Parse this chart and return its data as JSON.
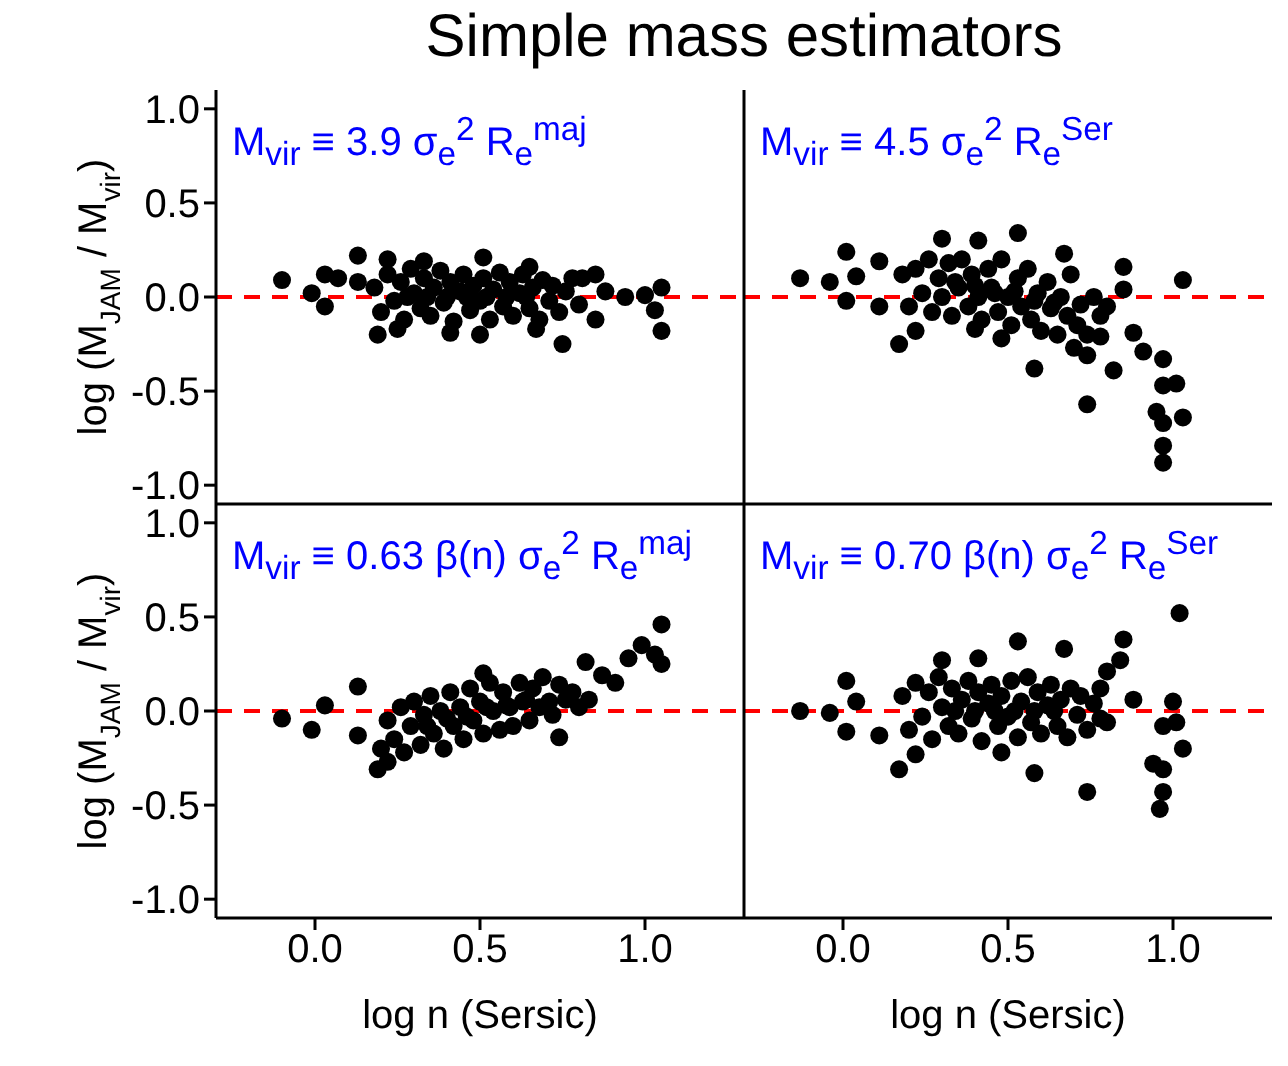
{
  "chart_data": [
    {
      "type": "scatter",
      "title": "Simple mass estimators",
      "ylabel": "log (M$_{JAM}$ / M$_{vir}$)",
      "annotations": [
        "M$_{vir}$ ≡ 3.9 σ$_{e}$$^{2}$ R$_{e}$$^{maj}$"
      ],
      "color": "#000000",
      "marker": "circle",
      "tick_labels": "y",
      "xlim": [
        -0.3,
        1.3
      ],
      "xticks": [
        {
          "value": 0,
          "label": null
        },
        {
          "value": 0.5,
          "label": null
        },
        {
          "value": 1,
          "label": null
        }
      ],
      "ylim": [
        -1.1,
        1.1
      ],
      "yticks": [
        {
          "value": -1,
          "label": "-1.0"
        },
        {
          "value": -0.5,
          "label": "-0.5"
        },
        {
          "value": 0,
          "label": "0.0"
        },
        {
          "value": 0.5,
          "label": "0.5"
        },
        {
          "value": 1,
          "label": "1.0"
        }
      ],
      "ref_lines": [
        {
          "axis": "y",
          "value": 0,
          "color": "#ff0000",
          "line_style": "dashed"
        }
      ],
      "x": [
        -0.1,
        -0.01,
        0.03,
        0.03,
        0.07,
        0.13,
        0.13,
        0.19,
        0.22,
        0.25,
        0.33,
        0.51,
        0.65,
        0.75,
        0.67,
        0.81,
        0.85,
        0.85,
        0.94,
        1.0,
        1.03,
        1.05,
        1.05,
        0.88,
        0.5,
        0.41,
        0.18,
        0.2,
        0.22,
        0.24,
        0.26,
        0.27,
        0.29,
        0.3,
        0.32,
        0.33,
        0.35,
        0.36,
        0.38,
        0.39,
        0.41,
        0.42,
        0.44,
        0.45,
        0.47,
        0.48,
        0.5,
        0.51,
        0.53,
        0.54,
        0.56,
        0.57,
        0.59,
        0.6,
        0.62,
        0.63,
        0.65,
        0.66,
        0.68,
        0.69,
        0.71,
        0.72,
        0.74,
        0.76,
        0.78,
        0.8,
        0.34,
        0.4,
        0.46,
        0.52,
        0.58,
        0.64,
        0.28
      ],
      "values": [
        0.09,
        0.02,
        0.12,
        -0.05,
        0.1,
        0.22,
        0.08,
        -0.2,
        0.2,
        -0.17,
        0.19,
        0.21,
        0.16,
        -0.25,
        -0.17,
        0.1,
        0.12,
        -0.12,
        0.0,
        0.01,
        -0.07,
        0.05,
        -0.18,
        0.03,
        -0.2,
        -0.19,
        0.05,
        -0.08,
        0.12,
        -0.02,
        0.08,
        -0.12,
        0.15,
        0.02,
        -0.06,
        0.1,
        -0.1,
        0.05,
        0.14,
        -0.03,
        0.08,
        -0.13,
        0.03,
        0.12,
        -0.07,
        0.06,
        -0.02,
        0.1,
        -0.12,
        0.04,
        0.13,
        -0.05,
        0.08,
        -0.1,
        0.02,
        0.12,
        -0.06,
        0.05,
        -0.12,
        0.09,
        -0.02,
        0.06,
        -0.08,
        0.03,
        0.1,
        -0.04,
        0.0,
        0.0,
        0.0,
        0.0,
        0.0,
        0.0,
        0.0
      ]
    },
    {
      "type": "scatter",
      "annotations": [
        "M$_{vir}$ ≡ 4.5 σ$_{e}$$^{2}$ R$_{e}$$^{Ser}$"
      ],
      "color": "#000000",
      "marker": "circle",
      "tick_labels": false,
      "xlim": [
        -0.3,
        1.3
      ],
      "xticks": [
        {
          "value": 0,
          "label": null
        },
        {
          "value": 0.5,
          "label": null
        },
        {
          "value": 1,
          "label": null
        }
      ],
      "ylim": [
        -1.1,
        1.1
      ],
      "yticks": [
        {
          "value": -1,
          "label": null
        },
        {
          "value": -0.5,
          "label": null
        },
        {
          "value": 0,
          "label": null
        },
        {
          "value": 0.5,
          "label": null
        },
        {
          "value": 1,
          "label": null
        }
      ],
      "ref_lines": [
        {
          "axis": "y",
          "value": 0,
          "color": "#ff0000",
          "line_style": "dashed"
        }
      ],
      "x": [
        -0.13,
        -0.04,
        0.01,
        0.01,
        0.04,
        0.11,
        0.11,
        0.17,
        0.22,
        0.3,
        0.41,
        0.4,
        0.48,
        0.53,
        0.58,
        0.67,
        0.74,
        0.78,
        0.82,
        0.85,
        0.85,
        0.88,
        0.91,
        0.97,
        0.97,
        1.01,
        0.95,
        0.97,
        1.03,
        0.97,
        0.97,
        1.03,
        0.74,
        0.7,
        0.18,
        0.2,
        0.22,
        0.24,
        0.26,
        0.27,
        0.29,
        0.3,
        0.32,
        0.33,
        0.35,
        0.36,
        0.38,
        0.39,
        0.41,
        0.42,
        0.44,
        0.45,
        0.47,
        0.48,
        0.5,
        0.51,
        0.53,
        0.54,
        0.56,
        0.57,
        0.59,
        0.6,
        0.62,
        0.63,
        0.65,
        0.66,
        0.68,
        0.69,
        0.71,
        0.72,
        0.74,
        0.76,
        0.78,
        0.8,
        0.34,
        0.4,
        0.46,
        0.52,
        0.58,
        0.64
      ],
      "values": [
        0.1,
        0.08,
        0.24,
        -0.02,
        0.11,
        0.19,
        -0.05,
        -0.25,
        -0.18,
        0.31,
        0.3,
        -0.17,
        -0.22,
        0.34,
        -0.38,
        0.23,
        -0.57,
        -0.21,
        -0.39,
        0.16,
        0.04,
        -0.19,
        -0.29,
        -0.33,
        -0.47,
        -0.46,
        -0.61,
        -0.67,
        -0.64,
        -0.79,
        -0.88,
        0.09,
        -0.31,
        -0.27,
        0.12,
        -0.05,
        0.15,
        0.02,
        0.2,
        -0.08,
        0.1,
        0.0,
        0.18,
        -0.1,
        0.05,
        0.2,
        -0.05,
        0.12,
        0.0,
        -0.12,
        0.15,
        0.05,
        -0.08,
        0.2,
        0.0,
        -0.15,
        0.1,
        -0.05,
        0.15,
        -0.12,
        0.02,
        -0.18,
        0.08,
        -0.06,
        -0.2,
        0.0,
        -0.1,
        0.12,
        -0.15,
        -0.04,
        -0.2,
        0.0,
        -0.1,
        -0.05,
        0.08,
        0.06,
        0.02,
        0.03,
        -0.02,
        -0.03
      ]
    },
    {
      "type": "scatter",
      "xlabel": "log n (Sersic)",
      "ylabel": "log (M$_{JAM}$ / M$_{vir}$)",
      "annotations": [
        "M$_{vir}$ ≡ 0.63 β(n) σ$_{e}$$^{2}$ R$_{e}$$^{maj}$"
      ],
      "color": "#000000",
      "marker": "circle",
      "xlim": [
        -0.3,
        1.3
      ],
      "xticks": [
        {
          "value": 0,
          "label": "0.0"
        },
        {
          "value": 0.5,
          "label": "0.5"
        },
        {
          "value": 1,
          "label": "1.0"
        }
      ],
      "ylim": [
        -1.1,
        1.1
      ],
      "yticks": [
        {
          "value": -1,
          "label": "-1.0"
        },
        {
          "value": -0.5,
          "label": "-0.5"
        },
        {
          "value": 0,
          "label": "0.0"
        },
        {
          "value": 0.5,
          "label": "0.5"
        },
        {
          "value": 1,
          "label": "1.0"
        }
      ],
      "ref_lines": [
        {
          "axis": "y",
          "value": 0,
          "color": "#ff0000",
          "line_style": "dashed"
        }
      ],
      "x": [
        -0.1,
        -0.01,
        0.03,
        0.13,
        0.13,
        0.19,
        0.22,
        0.51,
        0.74,
        0.82,
        0.87,
        0.95,
        0.99,
        1.05,
        1.05,
        1.03,
        0.91,
        0.83,
        0.2,
        0.22,
        0.24,
        0.26,
        0.27,
        0.29,
        0.3,
        0.32,
        0.33,
        0.35,
        0.36,
        0.38,
        0.39,
        0.41,
        0.42,
        0.44,
        0.45,
        0.47,
        0.48,
        0.5,
        0.51,
        0.53,
        0.54,
        0.56,
        0.57,
        0.59,
        0.6,
        0.62,
        0.63,
        0.65,
        0.66,
        0.68,
        0.69,
        0.71,
        0.72,
        0.74,
        0.76,
        0.78,
        0.8,
        0.34,
        0.4,
        0.46,
        0.52,
        0.58,
        0.64
      ],
      "values": [
        -0.04,
        -0.1,
        0.03,
        0.13,
        -0.13,
        -0.31,
        -0.27,
        0.2,
        -0.14,
        0.26,
        0.19,
        0.28,
        0.35,
        0.46,
        0.25,
        0.3,
        0.15,
        0.06,
        -0.2,
        -0.05,
        -0.15,
        0.02,
        -0.22,
        -0.08,
        0.05,
        -0.18,
        -0.02,
        0.08,
        -0.12,
        0.0,
        -0.2,
        0.1,
        -0.08,
        0.02,
        -0.15,
        0.12,
        -0.05,
        0.05,
        -0.12,
        0.15,
        0.0,
        -0.1,
        0.1,
        0.02,
        -0.08,
        0.15,
        0.05,
        -0.05,
        0.12,
        0.02,
        0.18,
        0.05,
        -0.02,
        0.14,
        0.06,
        0.1,
        0.02,
        -0.08,
        -0.04,
        -0.03,
        0.02,
        0.03,
        0.06
      ]
    },
    {
      "type": "scatter",
      "xlabel": "log n (Sersic)",
      "annotations": [
        "M$_{vir}$ ≡ 0.70 β(n) σ$_{e}$$^{2}$ R$_{e}$$^{Ser}$"
      ],
      "color": "#000000",
      "marker": "circle",
      "tick_labels": "x",
      "xlim": [
        -0.3,
        1.3
      ],
      "xticks": [
        {
          "value": 0,
          "label": "0.0"
        },
        {
          "value": 0.5,
          "label": "0.5"
        },
        {
          "value": 1,
          "label": "1.0"
        }
      ],
      "ylim": [
        -1.1,
        1.1
      ],
      "yticks": [
        {
          "value": -1,
          "label": null
        },
        {
          "value": -0.5,
          "label": null
        },
        {
          "value": 0,
          "label": null
        },
        {
          "value": 0.5,
          "label": null
        },
        {
          "value": 1,
          "label": null
        }
      ],
      "ref_lines": [
        {
          "axis": "y",
          "value": 0,
          "color": "#ff0000",
          "line_style": "dashed"
        }
      ],
      "x": [
        -0.13,
        -0.04,
        0.01,
        0.01,
        0.04,
        0.11,
        0.17,
        0.22,
        0.3,
        0.41,
        0.48,
        0.53,
        0.58,
        0.67,
        0.74,
        0.85,
        0.84,
        0.8,
        0.88,
        1.0,
        1.02,
        0.97,
        1.01,
        1.03,
        0.94,
        0.97,
        0.97,
        0.96,
        0.78,
        0.18,
        0.2,
        0.22,
        0.24,
        0.26,
        0.27,
        0.29,
        0.3,
        0.32,
        0.33,
        0.35,
        0.36,
        0.38,
        0.39,
        0.41,
        0.42,
        0.44,
        0.45,
        0.47,
        0.48,
        0.5,
        0.51,
        0.53,
        0.54,
        0.56,
        0.57,
        0.59,
        0.6,
        0.62,
        0.63,
        0.65,
        0.66,
        0.68,
        0.69,
        0.71,
        0.72,
        0.74,
        0.76,
        0.78,
        0.8,
        0.34,
        0.4,
        0.46,
        0.52,
        0.58,
        0.64
      ],
      "values": [
        0.0,
        -0.01,
        0.16,
        -0.11,
        0.05,
        -0.13,
        -0.31,
        -0.23,
        0.27,
        0.28,
        -0.22,
        0.37,
        -0.33,
        0.33,
        -0.43,
        0.38,
        0.27,
        0.21,
        0.06,
        0.05,
        0.52,
        -0.08,
        -0.06,
        -0.2,
        -0.28,
        -0.31,
        -0.43,
        -0.52,
        -0.04,
        0.08,
        -0.1,
        0.15,
        -0.03,
        0.1,
        -0.15,
        0.18,
        0.02,
        -0.08,
        0.12,
        -0.12,
        0.06,
        0.16,
        -0.04,
        0.1,
        -0.16,
        0.04,
        0.14,
        -0.08,
        0.08,
        -0.03,
        0.16,
        -0.14,
        0.05,
        0.18,
        -0.06,
        0.1,
        -0.12,
        0.03,
        0.14,
        -0.08,
        0.06,
        -0.14,
        0.12,
        -0.02,
        0.08,
        -0.1,
        0.04,
        0.12,
        -0.06,
        0.0,
        0.0,
        0.0,
        0.0,
        0.0,
        0.0
      ]
    }
  ]
}
